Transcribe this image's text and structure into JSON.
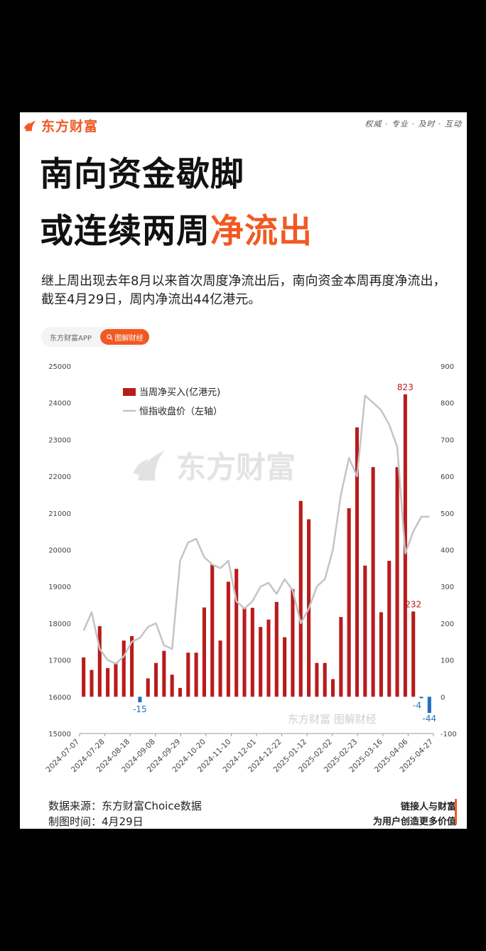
{
  "brand": {
    "name": "东方财富",
    "slogan": "权威 · 专业 · 及时 · 互动"
  },
  "headline": {
    "line1": "南向资金歇脚",
    "line2_prefix": "或连续两周",
    "line2_highlight": "净流出"
  },
  "subtitle": "继上周出现去年8月以来首次周度净流出后，南向资金本周再度净流出，截至4月29日，周内净流出44亿港元。",
  "badge": {
    "app": "东方财富APP",
    "button": "图解财经"
  },
  "watermark": {
    "main": "东方财富",
    "small": "东方财富 图解财经"
  },
  "footer": {
    "source": "数据来源：东方财富Choice数据",
    "date": "制图时间：4月29日",
    "tagline1": "链接人与财富",
    "tagline2": "为用户创造更多价值"
  },
  "colors": {
    "brand": "#f05a22",
    "bar_positive": "#b91c1c",
    "bar_negative": "#1e73be",
    "line": "#c4c4c4"
  },
  "chart_data": {
    "type": "bar",
    "legend": {
      "bars": "当周净买入(亿港元)",
      "line": "恒指收盘价（左轴）",
      "placement": "top-left"
    },
    "left_axis": {
      "ylim": [
        15000,
        25000
      ],
      "ticks": [
        15000,
        16000,
        17000,
        18000,
        19000,
        20000,
        21000,
        22000,
        23000,
        24000,
        25000
      ]
    },
    "right_axis": {
      "ylim": [
        -100,
        900
      ],
      "ticks": [
        -100,
        0,
        100,
        200,
        300,
        400,
        500,
        600,
        700,
        800,
        900
      ]
    },
    "x_tick_labels": [
      "2024-07-07",
      "2024-07-28",
      "2024-08-18",
      "2024-09-08",
      "2024-09-29",
      "2024-10-20",
      "2024-11-10",
      "2024-12-01",
      "2024-12-22",
      "2025-01-12",
      "2025-02-02",
      "2025-02-23",
      "2025-03-16",
      "2025-04-06",
      "2025-04-27"
    ],
    "net_buy": [
      107,
      73,
      192,
      78,
      93,
      153,
      165,
      -15,
      50,
      92,
      125,
      60,
      24,
      120,
      120,
      243,
      360,
      153,
      313,
      348,
      242,
      242,
      190,
      210,
      258,
      162,
      293,
      533,
      483,
      92,
      92,
      48,
      217,
      513,
      733,
      357,
      625,
      230,
      370,
      625,
      823,
      232,
      -4,
      -44
    ],
    "hsi_close": [
      17800,
      18300,
      17300,
      17000,
      16900,
      17100,
      17500,
      17600,
      17900,
      18000,
      17400,
      17300,
      19700,
      20200,
      20300,
      19800,
      19600,
      19500,
      19700,
      18600,
      18400,
      18600,
      19000,
      19100,
      18800,
      19200,
      18900,
      18000,
      18400,
      19000,
      19200,
      20000,
      21500,
      22500,
      22000,
      24200,
      24000,
      23800,
      23400,
      22800,
      19900,
      20500,
      20900,
      20900
    ],
    "labels": [
      {
        "index": 7,
        "text": "-15"
      },
      {
        "index": 40,
        "text": "823"
      },
      {
        "index": 41,
        "text": "232"
      },
      {
        "index": 42,
        "text": "-4"
      },
      {
        "index": 43,
        "text": "-44"
      }
    ]
  }
}
